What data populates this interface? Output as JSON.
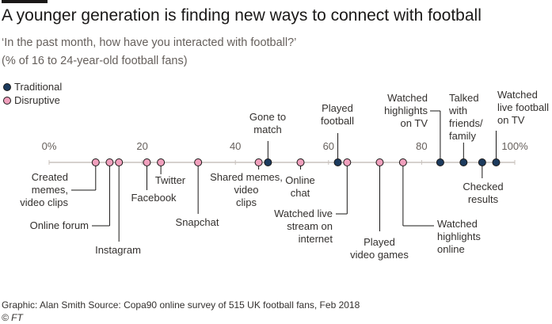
{
  "chart_data": {
    "type": "dot",
    "title": "A younger generation is finding new ways to connect with football",
    "subtitle": "‘In the past month, how have you interacted with football?’",
    "subtitle_2": "(% of 16 to 24-year-old football fans)",
    "xlim": [
      0,
      100
    ],
    "xticks": [
      {
        "value": 0,
        "label": "0%"
      },
      20,
      40,
      60,
      80,
      {
        "value": 100,
        "label": "100%"
      }
    ],
    "series": [
      {
        "name": "Traditional",
        "color": "#1d3b5e",
        "labels": [
          "Gone to match",
          "Played football",
          "Watched highlights on TV",
          "Talked with friends/ family",
          "Checked results",
          "Watched live football on TV"
        ],
        "values": [
          47,
          62,
          84,
          89,
          93,
          96
        ]
      },
      {
        "name": "Disruptive",
        "color": "#f0a0bd",
        "labels": [
          "Created memes, video clips",
          "Online forum",
          "Instagram",
          "Facebook",
          "Twitter",
          "Snapchat",
          "Shared memes, video clips",
          "Online chat",
          "Watched live stream on internet",
          "Played video games",
          "Watched highlights online"
        ],
        "values": [
          10,
          13,
          15,
          21,
          24,
          32,
          45,
          54,
          64,
          71,
          76
        ]
      }
    ],
    "source": "Graphic: Alan Smith   Source: Copa90 online survey of 515 UK football fans, Feb 2018",
    "credit": "© FT"
  }
}
